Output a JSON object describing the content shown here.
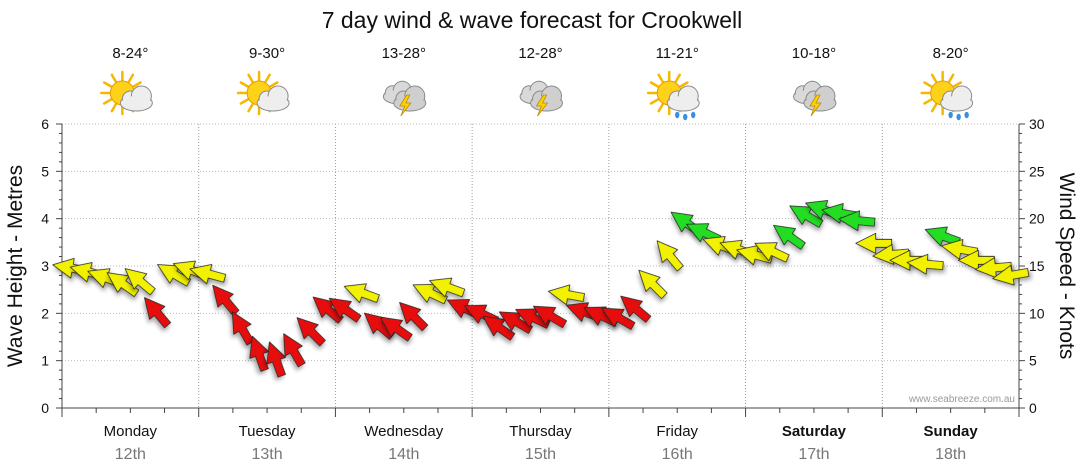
{
  "chart_data": {
    "type": "line",
    "title": "7 day wind & wave forecast for Crookwell",
    "ylabel_left": "Wave Height - Metres",
    "ylabel_right": "Wind Speed - Knots",
    "ylim_left": [
      0,
      6
    ],
    "ylim_right": [
      0,
      30
    ],
    "left_ticks": [
      "0",
      "1",
      "2",
      "3",
      "4",
      "5",
      "6"
    ],
    "right_ticks": [
      "0",
      "5",
      "10",
      "15",
      "20",
      "25",
      "30"
    ],
    "grid": true,
    "credit": "www.seabreeze.com.au",
    "days": [
      {
        "name": "Monday",
        "date": "12th",
        "temp": "8-24°",
        "icon": "sun-cloud-icon",
        "bold": false
      },
      {
        "name": "Tuesday",
        "date": "13th",
        "temp": "9-30°",
        "icon": "sun-cloud-icon",
        "bold": false
      },
      {
        "name": "Wednesday",
        "date": "14th",
        "temp": "13-28°",
        "icon": "storm-cloud-icon",
        "bold": false
      },
      {
        "name": "Thursday",
        "date": "15th",
        "temp": "12-28°",
        "icon": "storm-cloud-icon",
        "bold": false
      },
      {
        "name": "Friday",
        "date": "16th",
        "temp": "11-21°",
        "icon": "sun-rain-icon",
        "bold": false
      },
      {
        "name": "Saturday",
        "date": "17th",
        "temp": "10-18°",
        "icon": "storm-cloud-icon",
        "bold": true
      },
      {
        "name": "Sunday",
        "date": "18th",
        "temp": "8-20°",
        "icon": "sun-rain-icon",
        "bold": true
      }
    ],
    "wind_series": {
      "name": "Wind Speed (knots)",
      "unit_hours": 3,
      "colors": {
        "yellow": "#f2f200",
        "red": "#e81010",
        "green": "#22dd22"
      },
      "points": [
        {
          "t": 0,
          "kts": 14.8,
          "dir": 190,
          "c": "yellow"
        },
        {
          "t": 3,
          "kts": 14.4,
          "dir": 195,
          "c": "yellow"
        },
        {
          "t": 6,
          "kts": 13.8,
          "dir": 200,
          "c": "yellow"
        },
        {
          "t": 9,
          "kts": 13.2,
          "dir": 215,
          "c": "yellow"
        },
        {
          "t": 12,
          "kts": 13.5,
          "dir": 220,
          "c": "yellow"
        },
        {
          "t": 15,
          "kts": 10.2,
          "dir": 230,
          "c": "red"
        },
        {
          "t": 18,
          "kts": 14.2,
          "dir": 210,
          "c": "yellow"
        },
        {
          "t": 21,
          "kts": 14.6,
          "dir": 200,
          "c": "yellow"
        },
        {
          "t": 24,
          "kts": 14.2,
          "dir": 195,
          "c": "yellow"
        },
        {
          "t": 27,
          "kts": 11.5,
          "dir": 230,
          "c": "red"
        },
        {
          "t": 30,
          "kts": 8.5,
          "dir": 240,
          "c": "red"
        },
        {
          "t": 33,
          "kts": 5.8,
          "dir": 250,
          "c": "red"
        },
        {
          "t": 36,
          "kts": 5.2,
          "dir": 250,
          "c": "red"
        },
        {
          "t": 39,
          "kts": 6.2,
          "dir": 240,
          "c": "red"
        },
        {
          "t": 42,
          "kts": 8.2,
          "dir": 225,
          "c": "red"
        },
        {
          "t": 45,
          "kts": 10.5,
          "dir": 220,
          "c": "red"
        },
        {
          "t": 48,
          "kts": 10.5,
          "dir": 215,
          "c": "red"
        },
        {
          "t": 51,
          "kts": 12.2,
          "dir": 200,
          "c": "yellow"
        },
        {
          "t": 54,
          "kts": 8.8,
          "dir": 220,
          "c": "red"
        },
        {
          "t": 57,
          "kts": 8.5,
          "dir": 215,
          "c": "red"
        },
        {
          "t": 60,
          "kts": 9.8,
          "dir": 225,
          "c": "red"
        },
        {
          "t": 63,
          "kts": 12.2,
          "dir": 205,
          "c": "yellow"
        },
        {
          "t": 66,
          "kts": 12.8,
          "dir": 200,
          "c": "yellow"
        },
        {
          "t": 69,
          "kts": 10.6,
          "dir": 205,
          "c": "red"
        },
        {
          "t": 72,
          "kts": 10.0,
          "dir": 205,
          "c": "red"
        },
        {
          "t": 75,
          "kts": 8.6,
          "dir": 215,
          "c": "red"
        },
        {
          "t": 78,
          "kts": 9.2,
          "dir": 210,
          "c": "red"
        },
        {
          "t": 81,
          "kts": 9.6,
          "dir": 205,
          "c": "red"
        },
        {
          "t": 84,
          "kts": 9.8,
          "dir": 210,
          "c": "red"
        },
        {
          "t": 87,
          "kts": 12.0,
          "dir": 190,
          "c": "yellow"
        },
        {
          "t": 90,
          "kts": 10.2,
          "dir": 200,
          "c": "red"
        },
        {
          "t": 93,
          "kts": 9.8,
          "dir": 205,
          "c": "red"
        },
        {
          "t": 96,
          "kts": 9.6,
          "dir": 210,
          "c": "red"
        },
        {
          "t": 99,
          "kts": 10.6,
          "dir": 220,
          "c": "red"
        },
        {
          "t": 102,
          "kts": 13.2,
          "dir": 225,
          "c": "yellow"
        },
        {
          "t": 105,
          "kts": 16.2,
          "dir": 230,
          "c": "yellow"
        },
        {
          "t": 108,
          "kts": 19.6,
          "dir": 215,
          "c": "green"
        },
        {
          "t": 111,
          "kts": 18.6,
          "dir": 205,
          "c": "green"
        },
        {
          "t": 114,
          "kts": 17.2,
          "dir": 200,
          "c": "yellow"
        },
        {
          "t": 117,
          "kts": 16.8,
          "dir": 200,
          "c": "yellow"
        },
        {
          "t": 120,
          "kts": 16.2,
          "dir": 195,
          "c": "yellow"
        },
        {
          "t": 123,
          "kts": 16.6,
          "dir": 205,
          "c": "yellow"
        },
        {
          "t": 126,
          "kts": 18.2,
          "dir": 215,
          "c": "green"
        },
        {
          "t": 129,
          "kts": 20.4,
          "dir": 210,
          "c": "green"
        },
        {
          "t": 132,
          "kts": 21.0,
          "dir": 200,
          "c": "green"
        },
        {
          "t": 135,
          "kts": 20.6,
          "dir": 190,
          "c": "green"
        },
        {
          "t": 138,
          "kts": 19.8,
          "dir": 185,
          "c": "green"
        },
        {
          "t": 141,
          "kts": 17.4,
          "dir": 180,
          "c": "yellow"
        },
        {
          "t": 144,
          "kts": 16.2,
          "dir": 175,
          "c": "yellow"
        },
        {
          "t": 147,
          "kts": 15.6,
          "dir": 180,
          "c": "yellow"
        },
        {
          "t": 150,
          "kts": 15.2,
          "dir": 185,
          "c": "yellow"
        },
        {
          "t": 153,
          "kts": 18.2,
          "dir": 200,
          "c": "green"
        },
        {
          "t": 156,
          "kts": 16.8,
          "dir": 190,
          "c": "yellow"
        },
        {
          "t": 159,
          "kts": 15.6,
          "dir": 180,
          "c": "yellow"
        },
        {
          "t": 162,
          "kts": 14.8,
          "dir": 175,
          "c": "yellow"
        },
        {
          "t": 165,
          "kts": 14.0,
          "dir": 170,
          "c": "yellow"
        }
      ]
    }
  }
}
